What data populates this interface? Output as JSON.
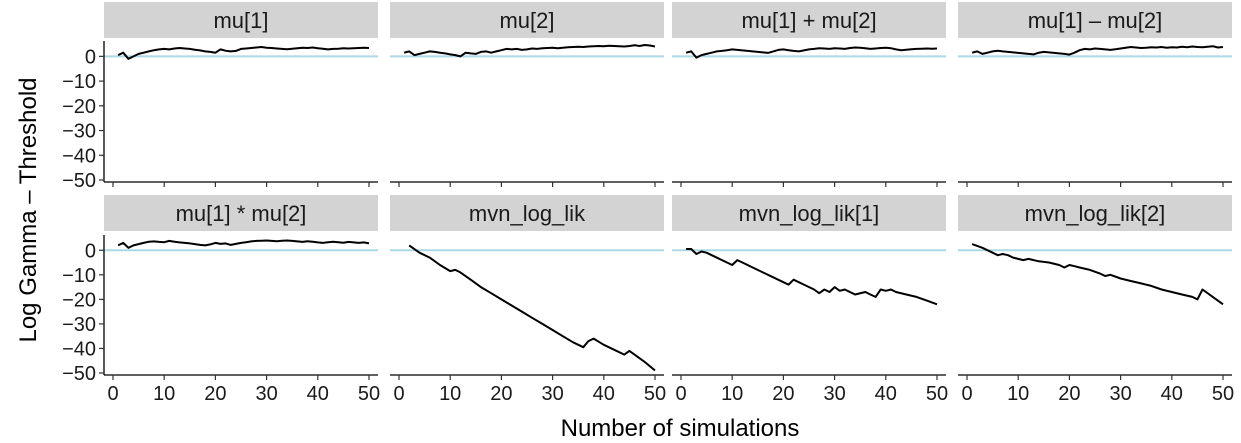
{
  "chart_data": {
    "type": "line",
    "layout": "facet-grid",
    "xlabel": "Number of simulations",
    "ylabel": "Log Gamma – Threshold",
    "xlim": [
      0,
      50
    ],
    "ylim": [
      -50,
      5
    ],
    "x_ticks": [
      0,
      10,
      20,
      30,
      40,
      50
    ],
    "y_ticks": [
      0,
      -10,
      -20,
      -30,
      -40,
      -50
    ],
    "y_tick_labels": [
      "0",
      "−10",
      "−20",
      "−30",
      "−40",
      "−50"
    ],
    "reference_line": {
      "y": 0,
      "color": "#add8e6"
    },
    "line_color": "#000000",
    "strip_color": "#d3d3d3",
    "panels": [
      {
        "title": "mu[1]",
        "x": [
          1,
          2,
          3,
          4,
          5,
          6,
          7,
          8,
          9,
          10,
          11,
          12,
          13,
          14,
          15,
          16,
          17,
          18,
          19,
          20,
          21,
          22,
          23,
          24,
          25,
          26,
          27,
          28,
          29,
          30,
          31,
          32,
          33,
          34,
          35,
          36,
          37,
          38,
          39,
          40,
          41,
          42,
          43,
          44,
          45,
          46,
          47,
          48,
          49,
          50
        ],
        "y": [
          0.5,
          1.5,
          -1,
          0,
          1,
          1.5,
          2,
          2.5,
          2.8,
          3,
          2.8,
          3.2,
          3.4,
          3.2,
          3,
          2.7,
          2.4,
          2,
          1.8,
          1.5,
          2.8,
          2.3,
          2,
          2.2,
          3,
          3.2,
          3.4,
          3.6,
          3.8,
          3.5,
          3.4,
          3.2,
          3,
          2.9,
          3.1,
          3.3,
          3.5,
          3.4,
          3.6,
          3.3,
          3.1,
          2.8,
          3,
          3.1,
          3.3,
          3.2,
          3.3,
          3.4,
          3.5,
          3.4
        ]
      },
      {
        "title": "mu[2]",
        "x": [
          1,
          2,
          3,
          4,
          5,
          6,
          7,
          8,
          9,
          10,
          11,
          12,
          13,
          14,
          15,
          16,
          17,
          18,
          19,
          20,
          21,
          22,
          23,
          24,
          25,
          26,
          27,
          28,
          29,
          30,
          31,
          32,
          33,
          34,
          35,
          36,
          37,
          38,
          39,
          40,
          41,
          42,
          43,
          44,
          45,
          46,
          47,
          48,
          49,
          50
        ],
        "y": [
          1.5,
          2,
          0.5,
          1,
          1.5,
          2,
          1.8,
          1.5,
          1.2,
          0.8,
          0.5,
          0,
          1.5,
          1.2,
          1,
          1.8,
          2,
          1.5,
          2,
          2.5,
          3,
          2.8,
          3,
          2.6,
          2.8,
          3.2,
          3,
          3.3,
          3.4,
          3.5,
          3.3,
          3.5,
          3.7,
          3.8,
          3.9,
          3.8,
          4,
          4.1,
          4.2,
          4.1,
          4.3,
          4.2,
          4.1,
          4,
          4.2,
          4.5,
          4.2,
          4.6,
          4.4,
          4
        ]
      },
      {
        "title": "mu[1] + mu[2]",
        "x": [
          1,
          2,
          3,
          4,
          5,
          6,
          7,
          8,
          9,
          10,
          11,
          12,
          13,
          14,
          15,
          16,
          17,
          18,
          19,
          20,
          21,
          22,
          23,
          24,
          25,
          26,
          27,
          28,
          29,
          30,
          31,
          32,
          33,
          34,
          35,
          36,
          37,
          38,
          39,
          40,
          41,
          42,
          43,
          44,
          45,
          46,
          47,
          48,
          49,
          50
        ],
        "y": [
          1.5,
          2,
          -0.5,
          0.5,
          1,
          1.5,
          2,
          2.2,
          2.5,
          2.8,
          2.6,
          2.4,
          2.2,
          2,
          1.8,
          1.6,
          1.4,
          2,
          2.6,
          2.8,
          2.5,
          2.2,
          2,
          2.4,
          2.8,
          3,
          3.3,
          3.2,
          3,
          3.3,
          3.2,
          3,
          3.4,
          3.6,
          3.5,
          3.3,
          3,
          3.2,
          3.4,
          3.5,
          3.3,
          2.8,
          2.5,
          2.7,
          2.9,
          3,
          3.1,
          3.2,
          3.1,
          3.2
        ]
      },
      {
        "title": "mu[1] – mu[2]",
        "x": [
          1,
          2,
          3,
          4,
          5,
          6,
          7,
          8,
          9,
          10,
          11,
          12,
          13,
          14,
          15,
          16,
          17,
          18,
          19,
          20,
          21,
          22,
          23,
          24,
          25,
          26,
          27,
          28,
          29,
          30,
          31,
          32,
          33,
          34,
          35,
          36,
          37,
          38,
          39,
          40,
          41,
          42,
          43,
          44,
          45,
          46,
          47,
          48,
          49,
          50
        ],
        "y": [
          1.5,
          2,
          1,
          1.5,
          2,
          2.3,
          2,
          1.8,
          1.6,
          1.4,
          1.2,
          1,
          0.8,
          1.5,
          1.8,
          1.6,
          1.4,
          1.2,
          1,
          0.7,
          1.5,
          2.5,
          3,
          2.8,
          3.2,
          3,
          2.8,
          2.6,
          2.9,
          3.2,
          3.5,
          3.8,
          3.6,
          3.4,
          3.5,
          3.7,
          3.6,
          3.8,
          3.5,
          3.7,
          3.6,
          3.9,
          3.7,
          4,
          3.8,
          3.7,
          3.9,
          4.1,
          3.6,
          3.8
        ]
      },
      {
        "title": "mu[1] * mu[2]",
        "x": [
          1,
          2,
          3,
          4,
          5,
          6,
          7,
          8,
          9,
          10,
          11,
          12,
          13,
          14,
          15,
          16,
          17,
          18,
          19,
          20,
          21,
          22,
          23,
          24,
          25,
          26,
          27,
          28,
          29,
          30,
          31,
          32,
          33,
          34,
          35,
          36,
          37,
          38,
          39,
          40,
          41,
          42,
          43,
          44,
          45,
          46,
          47,
          48,
          49,
          50
        ],
        "y": [
          2,
          3,
          1,
          2,
          2.5,
          3,
          3.5,
          3.6,
          3.4,
          3.3,
          3.8,
          3.5,
          3.2,
          3,
          2.8,
          2.5,
          2.2,
          2,
          2.4,
          3,
          2.6,
          2.8,
          2.2,
          2.6,
          3,
          3.3,
          3.6,
          3.8,
          3.9,
          4,
          3.8,
          3.7,
          3.9,
          4,
          3.8,
          3.6,
          3.4,
          3.7,
          3.5,
          3.2,
          3,
          3.3,
          3.5,
          3.3,
          3.1,
          3.4,
          3.2,
          3,
          3.2,
          2.8
        ]
      },
      {
        "title": "mvn_log_lik",
        "x": [
          2,
          4,
          6,
          8,
          10,
          11,
          12,
          14,
          16,
          18,
          20,
          22,
          24,
          26,
          28,
          30,
          32,
          34,
          36,
          37,
          38,
          40,
          42,
          44,
          45,
          46,
          48,
          50
        ],
        "y": [
          2,
          -1,
          -3,
          -6,
          -8.5,
          -8,
          -9,
          -12,
          -15,
          -17.5,
          -20,
          -22.5,
          -25,
          -27.5,
          -30,
          -32.5,
          -35,
          -37.5,
          -39.5,
          -37,
          -36,
          -38.5,
          -40.5,
          -42.5,
          -41,
          -42.5,
          -45.5,
          -49
        ]
      },
      {
        "title": "mvn_log_lik[1]",
        "x": [
          1,
          2,
          3,
          4,
          5,
          6,
          8,
          10,
          11,
          12,
          14,
          16,
          18,
          20,
          21,
          22,
          24,
          26,
          27,
          28,
          29,
          30,
          31,
          32,
          34,
          36,
          37,
          38,
          39,
          40,
          41,
          42,
          44,
          46,
          48,
          50
        ],
        "y": [
          0.5,
          0.5,
          -1.5,
          -0.5,
          -1,
          -2,
          -4,
          -6,
          -4,
          -5,
          -7,
          -9,
          -11,
          -13,
          -14,
          -12,
          -14,
          -16,
          -17.5,
          -16,
          -17,
          -15,
          -16.5,
          -16,
          -18,
          -17,
          -18,
          -19,
          -16,
          -16.5,
          -16,
          -17,
          -18,
          -19,
          -20.5,
          -22
        ]
      },
      {
        "title": "mvn_log_lik[2]",
        "x": [
          1,
          3,
          5,
          6,
          7,
          8,
          9,
          10,
          11,
          12,
          14,
          16,
          18,
          19,
          20,
          21,
          22,
          24,
          26,
          27,
          28,
          30,
          32,
          34,
          36,
          38,
          40,
          42,
          44,
          45,
          46,
          48,
          50
        ],
        "y": [
          2.5,
          1,
          -1,
          -2,
          -1.5,
          -2,
          -3,
          -3.5,
          -4,
          -3.5,
          -4.5,
          -5,
          -6,
          -7,
          -6,
          -6.5,
          -7,
          -8,
          -9.5,
          -10.5,
          -10,
          -11.5,
          -12.5,
          -13.5,
          -14.5,
          -16,
          -17,
          -18,
          -19,
          -20,
          -16,
          -19,
          -22
        ]
      }
    ]
  }
}
